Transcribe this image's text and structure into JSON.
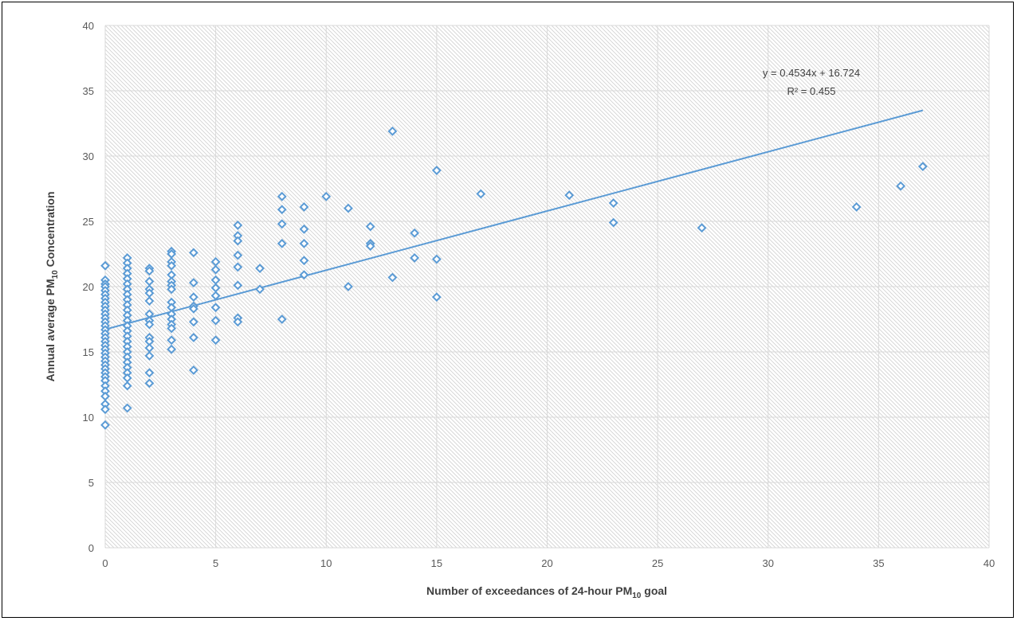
{
  "chart_data": {
    "type": "scatter",
    "title": "",
    "xlabel": {
      "main": "Number of exceedances of 24-hour PM",
      "sub": "10",
      "suffix": " goal"
    },
    "ylabel": {
      "main": "Annual average PM",
      "sub": "10",
      "suffix": " Concentration"
    },
    "xlim": [
      0,
      40
    ],
    "ylim": [
      0,
      40
    ],
    "xticks": [
      0,
      5,
      10,
      15,
      20,
      25,
      30,
      35,
      40
    ],
    "yticks": [
      0,
      5,
      10,
      15,
      20,
      25,
      30,
      35,
      40
    ],
    "grid": true,
    "background_pattern": "diagonal-hatch",
    "marker": "diamond-outline",
    "colors": {
      "series": "#5b9bd5",
      "grid": "#d9d9d9",
      "hatch": "#d0d0d0"
    },
    "trendline": {
      "type": "linear",
      "slope": 0.4534,
      "intercept": 16.724,
      "x_range": [
        0,
        37
      ],
      "equation_label": "y = 0.4534x + 16.724",
      "r2_label": "R² = 0.455"
    },
    "points": [
      [
        0,
        21.6
      ],
      [
        0,
        20.5
      ],
      [
        0,
        20.2
      ],
      [
        0,
        20.0
      ],
      [
        0,
        19.7
      ],
      [
        0,
        19.4
      ],
      [
        0,
        19.1
      ],
      [
        0,
        18.8
      ],
      [
        0,
        18.5
      ],
      [
        0,
        18.2
      ],
      [
        0,
        17.9
      ],
      [
        0,
        17.6
      ],
      [
        0,
        17.3
      ],
      [
        0,
        17.0
      ],
      [
        0,
        16.7
      ],
      [
        0,
        16.4
      ],
      [
        0,
        16.1
      ],
      [
        0,
        15.8
      ],
      [
        0,
        15.5
      ],
      [
        0,
        15.2
      ],
      [
        0,
        14.9
      ],
      [
        0,
        14.6
      ],
      [
        0,
        14.3
      ],
      [
        0,
        14.0
      ],
      [
        0,
        13.7
      ],
      [
        0,
        13.4
      ],
      [
        0,
        13.1
      ],
      [
        0,
        12.8
      ],
      [
        0,
        12.4
      ],
      [
        0,
        12.0
      ],
      [
        0,
        11.6
      ],
      [
        0,
        11.0
      ],
      [
        0,
        10.6
      ],
      [
        0,
        9.4
      ],
      [
        1,
        22.2
      ],
      [
        1,
        21.8
      ],
      [
        1,
        21.4
      ],
      [
        1,
        21.0
      ],
      [
        1,
        20.6
      ],
      [
        1,
        20.2
      ],
      [
        1,
        19.8
      ],
      [
        1,
        19.4
      ],
      [
        1,
        19.0
      ],
      [
        1,
        18.6
      ],
      [
        1,
        18.2
      ],
      [
        1,
        17.8
      ],
      [
        1,
        17.4
      ],
      [
        1,
        17.0
      ],
      [
        1,
        16.6
      ],
      [
        1,
        16.2
      ],
      [
        1,
        15.8
      ],
      [
        1,
        15.4
      ],
      [
        1,
        15.0
      ],
      [
        1,
        14.6
      ],
      [
        1,
        14.2
      ],
      [
        1,
        13.8
      ],
      [
        1,
        13.4
      ],
      [
        1,
        13.0
      ],
      [
        1,
        12.4
      ],
      [
        1,
        10.7
      ],
      [
        2,
        21.4
      ],
      [
        2,
        21.2
      ],
      [
        2,
        20.4
      ],
      [
        2,
        19.8
      ],
      [
        2,
        19.5
      ],
      [
        2,
        18.9
      ],
      [
        2,
        17.9
      ],
      [
        2,
        17.4
      ],
      [
        2,
        17.1
      ],
      [
        2,
        16.1
      ],
      [
        2,
        15.8
      ],
      [
        2,
        15.3
      ],
      [
        2,
        14.7
      ],
      [
        2,
        13.4
      ],
      [
        2,
        12.6
      ],
      [
        3,
        22.7
      ],
      [
        3,
        22.5
      ],
      [
        3,
        21.9
      ],
      [
        3,
        21.6
      ],
      [
        3,
        20.9
      ],
      [
        3,
        20.4
      ],
      [
        3,
        20.1
      ],
      [
        3,
        19.8
      ],
      [
        3,
        18.8
      ],
      [
        3,
        18.4
      ],
      [
        3,
        17.9
      ],
      [
        3,
        17.5
      ],
      [
        3,
        17.1
      ],
      [
        3,
        16.8
      ],
      [
        3,
        15.9
      ],
      [
        3,
        15.2
      ],
      [
        4,
        22.6
      ],
      [
        4,
        20.3
      ],
      [
        4,
        19.2
      ],
      [
        4,
        18.5
      ],
      [
        4,
        18.3
      ],
      [
        4,
        17.3
      ],
      [
        4,
        16.1
      ],
      [
        4,
        13.6
      ],
      [
        5,
        21.9
      ],
      [
        5,
        21.3
      ],
      [
        5,
        20.5
      ],
      [
        5,
        19.9
      ],
      [
        5,
        19.3
      ],
      [
        5,
        18.4
      ],
      [
        5,
        17.4
      ],
      [
        5,
        15.9
      ],
      [
        6,
        24.7
      ],
      [
        6,
        23.9
      ],
      [
        6,
        23.5
      ],
      [
        6,
        22.4
      ],
      [
        6,
        21.5
      ],
      [
        6,
        20.1
      ],
      [
        6,
        17.6
      ],
      [
        6,
        17.3
      ],
      [
        7,
        21.4
      ],
      [
        7,
        19.8
      ],
      [
        8,
        26.9
      ],
      [
        8,
        25.9
      ],
      [
        8,
        24.8
      ],
      [
        8,
        23.3
      ],
      [
        8,
        17.5
      ],
      [
        9,
        26.1
      ],
      [
        9,
        24.4
      ],
      [
        9,
        23.3
      ],
      [
        9,
        22.0
      ],
      [
        9,
        20.9
      ],
      [
        10,
        26.9
      ],
      [
        11,
        26.0
      ],
      [
        11,
        20.0
      ],
      [
        12,
        24.6
      ],
      [
        12,
        23.3
      ],
      [
        12,
        23.1
      ],
      [
        13,
        31.9
      ],
      [
        13,
        20.7
      ],
      [
        14,
        24.1
      ],
      [
        14,
        22.2
      ],
      [
        15,
        28.9
      ],
      [
        15,
        22.1
      ],
      [
        15,
        19.2
      ],
      [
        17,
        27.1
      ],
      [
        21,
        27.0
      ],
      [
        23,
        26.4
      ],
      [
        23,
        24.9
      ],
      [
        27,
        24.5
      ],
      [
        34,
        26.1
      ],
      [
        36,
        27.7
      ],
      [
        37,
        29.2
      ]
    ]
  }
}
